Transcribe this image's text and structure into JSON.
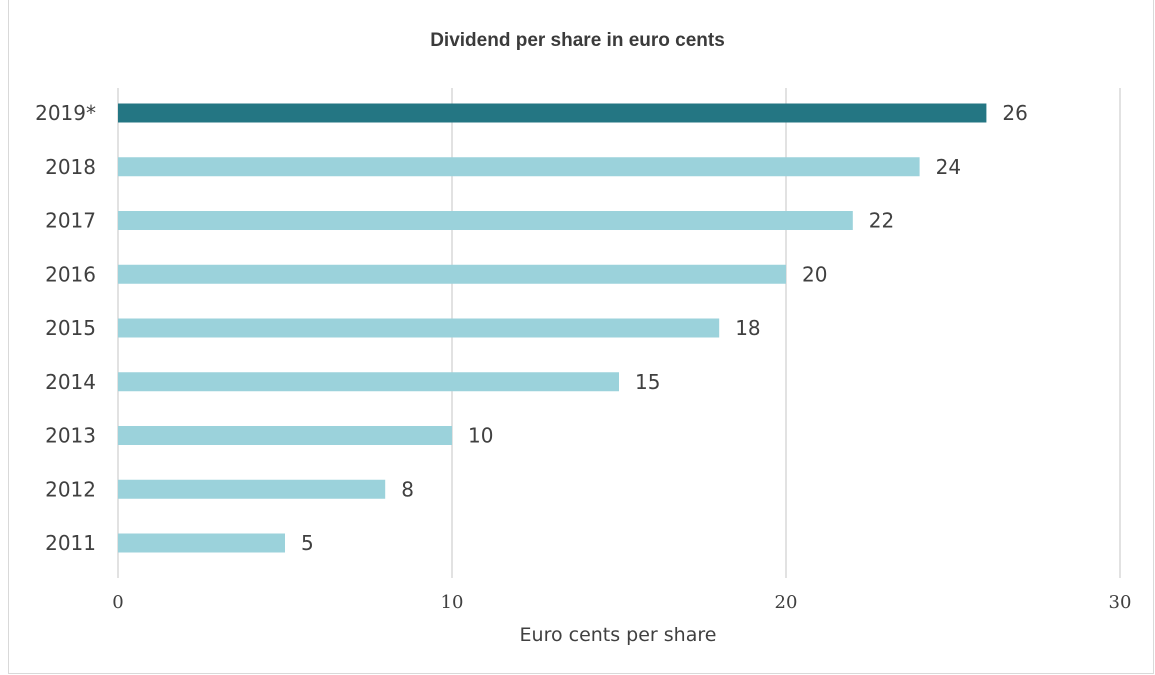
{
  "chart_data": {
    "type": "bar",
    "orientation": "horizontal",
    "title": "Dividend per share in euro cents",
    "xlabel": "Euro cents per share",
    "ylabel": "",
    "categories": [
      "2019*",
      "2018",
      "2017",
      "2016",
      "2015",
      "2014",
      "2013",
      "2012",
      "2011"
    ],
    "values": [
      26,
      24,
      22,
      20,
      18,
      15,
      10,
      8,
      5
    ],
    "value_labels": [
      "26",
      "24",
      "22",
      "20",
      "18",
      "15",
      "10",
      "8",
      "5"
    ],
    "highlight_index": 0,
    "xlim": [
      0,
      30
    ],
    "x_ticks": [
      "0",
      "10",
      "20",
      "30"
    ],
    "grid": "vertical",
    "legend": "none",
    "colors": {
      "highlight": "#247683",
      "bar": "#9bd2db",
      "grid": "#d9d9d9",
      "text": "#404040"
    }
  }
}
